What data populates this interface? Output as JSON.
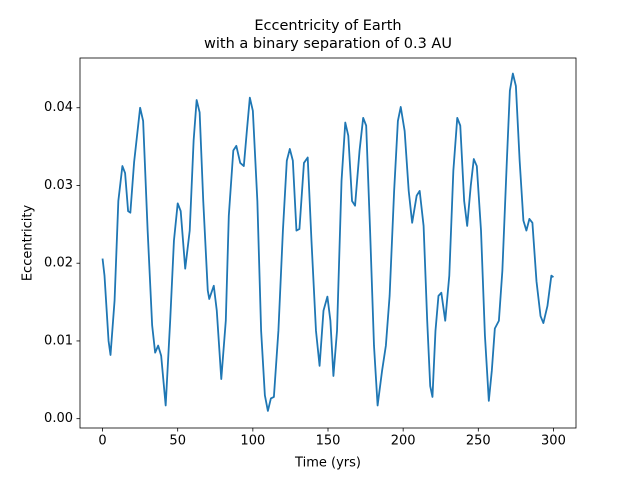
{
  "chart_data": {
    "type": "line",
    "title": "Eccentricity of Earth",
    "subtitle": "with a binary separation of 0.3 AU",
    "x_label": "Time (yrs)",
    "y_label": "Eccentricity",
    "xlim": [
      -15,
      315
    ],
    "ylim": [
      -0.0012,
      0.0464
    ],
    "xticks": [
      0,
      50,
      100,
      150,
      200,
      250,
      300
    ],
    "yticks": [
      {
        "value": 0,
        "label": "0.00"
      },
      {
        "value": 0.01,
        "label": "0.01"
      },
      {
        "value": 0.02,
        "label": "0.02"
      },
      {
        "value": 0.03,
        "label": "0.03"
      },
      {
        "value": 0.04,
        "label": "0.04"
      }
    ],
    "color": "#1f77b4",
    "x": [
      0,
      1.3,
      4,
      5.3,
      8,
      10.5,
      13.2,
      15,
      17,
      18.5,
      21,
      25,
      27,
      30,
      33,
      35,
      37,
      39,
      42,
      45,
      47.5,
      50,
      52,
      55,
      58,
      60.6,
      62.6,
      64.6,
      67,
      70,
      71,
      74,
      76,
      79,
      82,
      84,
      87,
      89,
      91.6,
      94,
      96,
      98,
      100,
      103,
      105.5,
      108,
      110,
      112,
      114,
      117,
      120,
      122.6,
      124.6,
      126.6,
      129,
      131,
      134,
      136.5,
      139,
      142,
      144.4,
      147,
      149.6,
      151.6,
      153.6,
      156,
      159,
      161.5,
      163.5,
      166,
      168,
      171,
      173.4,
      175.4,
      178,
      180.6,
      183,
      186,
      188.5,
      191,
      194,
      196.5,
      198.4,
      201,
      203.7,
      206,
      209,
      211,
      213.6,
      216,
      218,
      219.5,
      221.5,
      223.5,
      225.4,
      228,
      230.7,
      233.4,
      236,
      238,
      240.6,
      242.6,
      245,
      247,
      249,
      251.8,
      254.4,
      257,
      259,
      261,
      263.7,
      266,
      269,
      271,
      273,
      275,
      277.5,
      280,
      282,
      284,
      286,
      288.7,
      291.4,
      293.3,
      296,
      298.6,
      300
    ],
    "values": [
      0.0206,
      0.0184,
      0.01,
      0.0082,
      0.0152,
      0.028,
      0.0325,
      0.0316,
      0.0267,
      0.0265,
      0.033,
      0.04,
      0.0383,
      0.0242,
      0.012,
      0.0085,
      0.0094,
      0.0081,
      0.0017,
      0.0126,
      0.0229,
      0.0277,
      0.0267,
      0.0193,
      0.0242,
      0.0358,
      0.041,
      0.0394,
      0.028,
      0.0165,
      0.0154,
      0.0171,
      0.0139,
      0.0051,
      0.0126,
      0.0261,
      0.0345,
      0.0351,
      0.0329,
      0.0325,
      0.037,
      0.0413,
      0.0396,
      0.028,
      0.0113,
      0.003,
      0.001,
      0.0026,
      0.0028,
      0.0113,
      0.0242,
      0.0332,
      0.0347,
      0.0332,
      0.0242,
      0.0244,
      0.0329,
      0.0336,
      0.0229,
      0.0113,
      0.0068,
      0.0139,
      0.0157,
      0.0126,
      0.0055,
      0.0113,
      0.0306,
      0.0381,
      0.0364,
      0.028,
      0.0274,
      0.0345,
      0.0387,
      0.0377,
      0.0242,
      0.0094,
      0.0017,
      0.0062,
      0.0094,
      0.0158,
      0.0293,
      0.0383,
      0.0401,
      0.037,
      0.0293,
      0.0252,
      0.0287,
      0.0293,
      0.0248,
      0.0126,
      0.0042,
      0.0028,
      0.0113,
      0.0158,
      0.0162,
      0.0126,
      0.0184,
      0.0319,
      0.0387,
      0.0377,
      0.028,
      0.0248,
      0.03,
      0.0334,
      0.0325,
      0.0242,
      0.0107,
      0.0023,
      0.0062,
      0.0116,
      0.0126,
      0.019,
      0.0332,
      0.0422,
      0.0444,
      0.0428,
      0.0332,
      0.0255,
      0.0242,
      0.0257,
      0.0252,
      0.0177,
      0.0132,
      0.0123,
      0.0145,
      0.0184,
      0.0182
    ]
  }
}
